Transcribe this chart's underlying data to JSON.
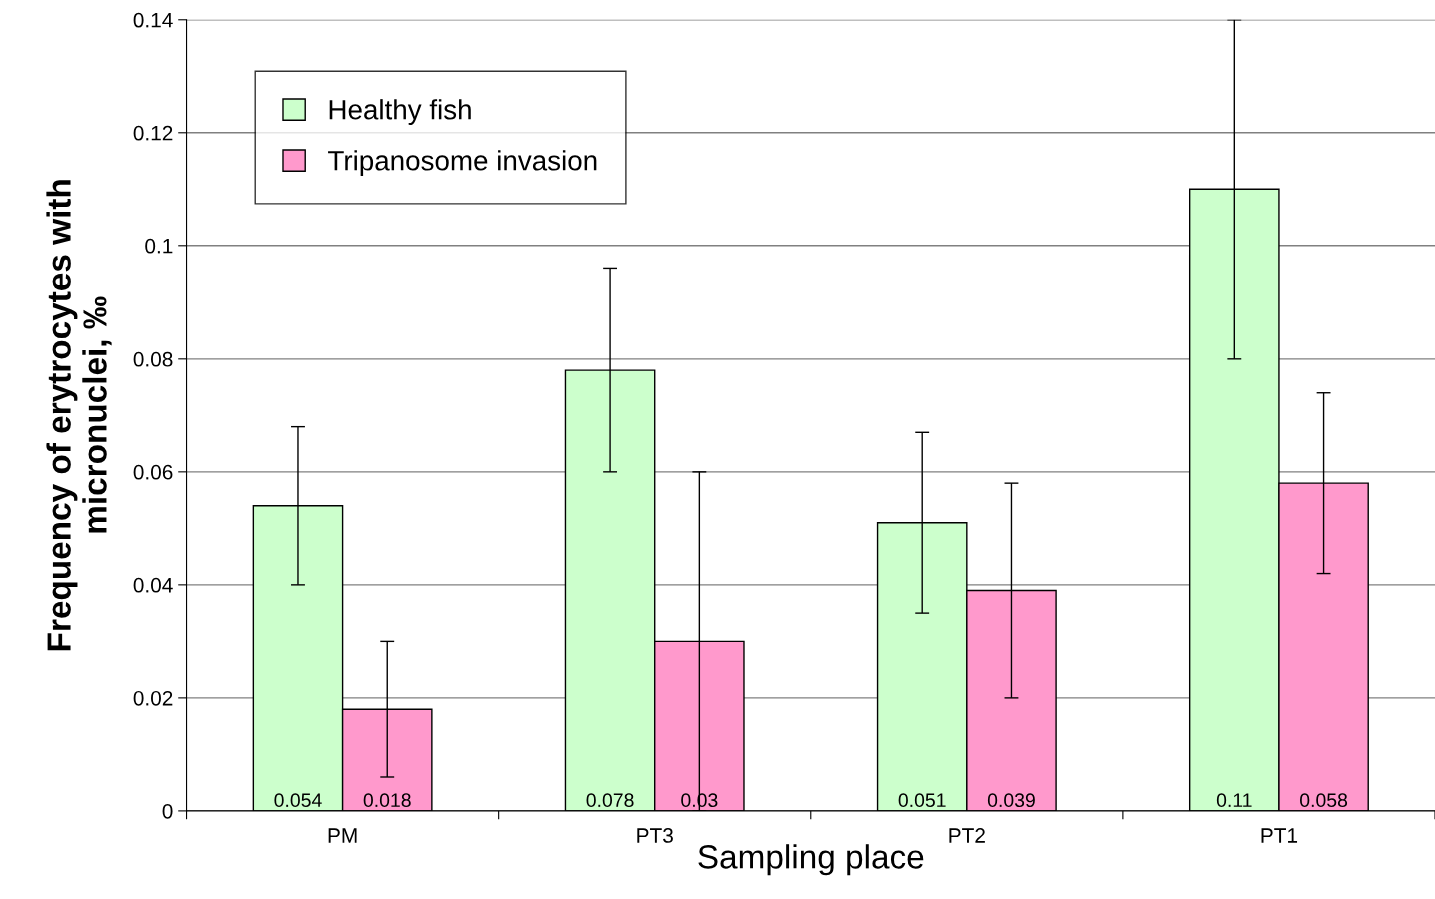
{
  "chart_data": {
    "type": "bar",
    "xlabel": "Sampling place",
    "ylabel": "Frequency of erytrocytes with\nmicronuclei, ‰",
    "categories": [
      "PM",
      "PT3",
      "PT2",
      "PT1"
    ],
    "series": [
      {
        "name": "Healthy fish",
        "color": "#ccffcc",
        "values": [
          0.054,
          0.078,
          0.051,
          0.11
        ],
        "errors": [
          [
            0.04,
            0.068
          ],
          [
            0.06,
            0.096
          ],
          [
            0.035,
            0.067
          ],
          [
            0.08,
            0.14
          ]
        ]
      },
      {
        "name": "Tripanosome invasion",
        "color": "#ff99cc",
        "values": [
          0.018,
          0.03,
          0.039,
          0.058
        ],
        "errors": [
          [
            0.006,
            0.03
          ],
          [
            0.0,
            0.06
          ],
          [
            0.02,
            0.058
          ],
          [
            0.042,
            0.074
          ]
        ]
      }
    ],
    "ylim": [
      0,
      0.14
    ],
    "yticks": [
      0,
      0.02,
      0.04,
      0.06,
      0.08,
      0.1,
      0.12,
      0.14
    ],
    "data_labels": true,
    "grid": "y",
    "legend": "top left"
  }
}
